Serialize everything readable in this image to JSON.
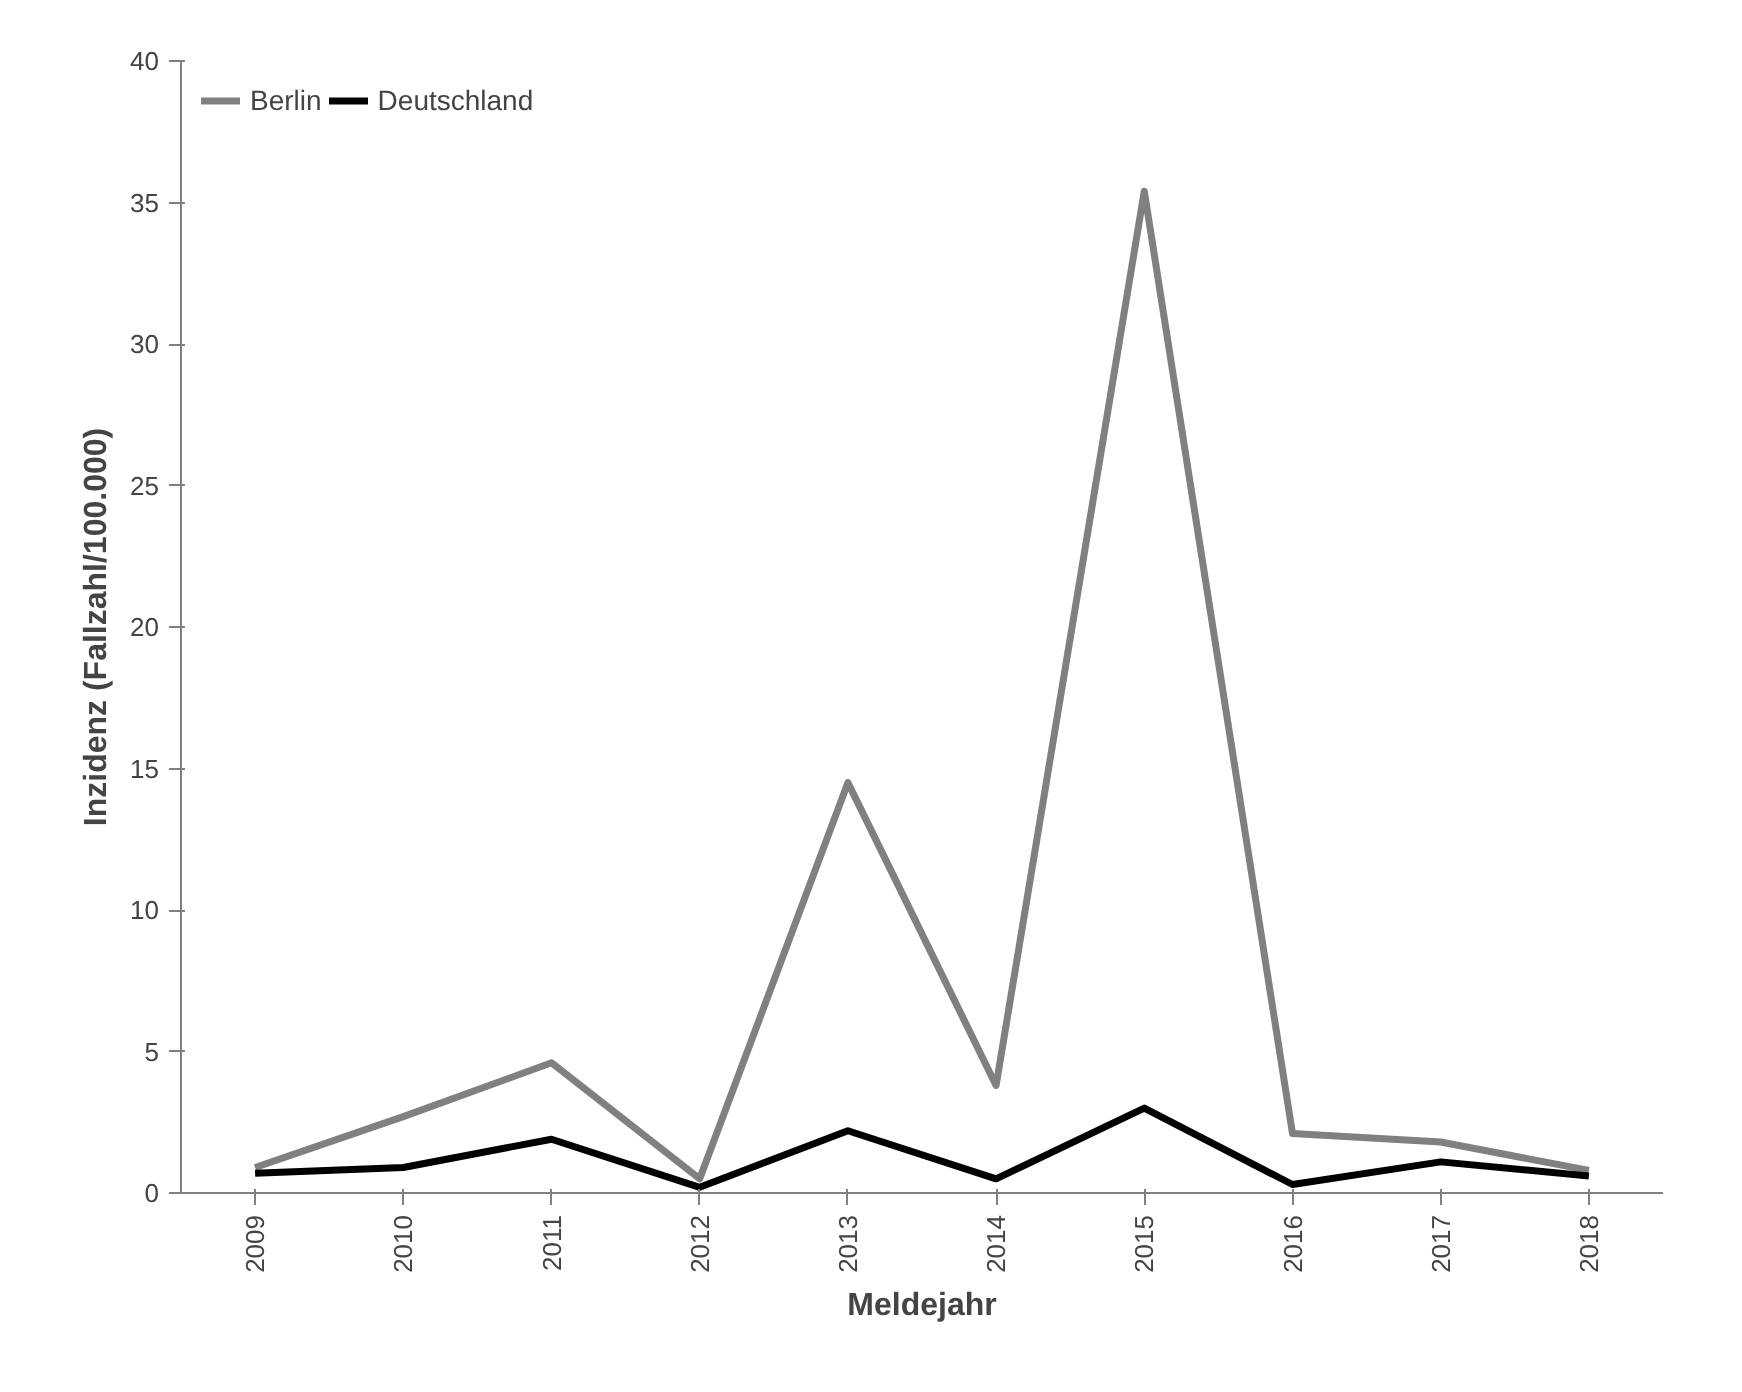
{
  "chart_data": {
    "type": "line",
    "xlabel": "Meldejahr",
    "ylabel": "Inzidenz (Fallzahl/100.000)",
    "categories": [
      "2009",
      "2010",
      "2011",
      "2012",
      "2013",
      "2014",
      "2015",
      "2016",
      "2017",
      "2018"
    ],
    "series": [
      {
        "name": "Berlin",
        "color": "#808080",
        "values": [
          0.9,
          2.7,
          4.6,
          0.5,
          14.5,
          3.8,
          35.4,
          2.1,
          1.8,
          0.8
        ]
      },
      {
        "name": "Deutschland",
        "color": "#000000",
        "values": [
          0.7,
          0.9,
          1.9,
          0.2,
          2.2,
          0.5,
          3.0,
          0.3,
          1.1,
          0.6
        ]
      }
    ],
    "ylim": [
      0,
      40
    ],
    "yticks": [
      0,
      5,
      10,
      15,
      20,
      25,
      30,
      35,
      40
    ],
    "grid": false,
    "legend": "top left",
    "marker": "none",
    "line_style": "solid"
  }
}
